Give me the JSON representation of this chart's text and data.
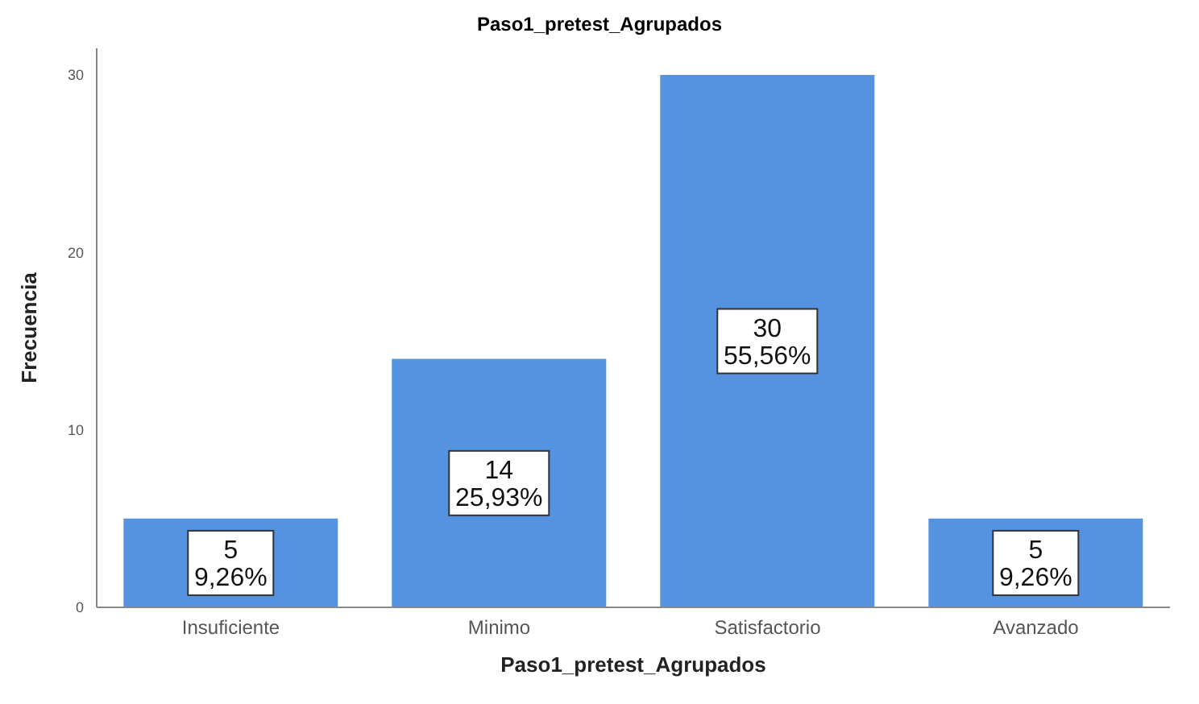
{
  "chart_data": {
    "type": "bar",
    "title": "Paso1_pretest_Agrupados",
    "xlabel": "Paso1_pretest_Agrupados",
    "ylabel": "Frecuencia",
    "categories": [
      "Insuficiente",
      "Minimo",
      "Satisfactorio",
      "Avanzado"
    ],
    "values": [
      5,
      14,
      30,
      5
    ],
    "value_labels": [
      "5\n9,26%",
      "14\n25,93%",
      "30\n55,56%",
      "5\n9,26%"
    ],
    "color": "#5592e0",
    "ylim": [
      0,
      31.5
    ],
    "yticks": [
      0,
      10,
      20,
      30
    ],
    "grid": false
  }
}
